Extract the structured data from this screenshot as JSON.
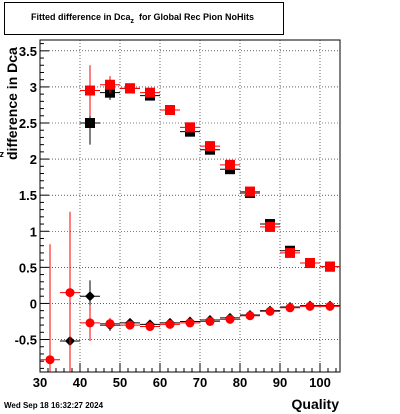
{
  "title": {
    "main": "Fitted difference in Dca",
    "sub": "z",
    "rest": "for Global Rec Pion NoHits"
  },
  "footer": "Wed Sep 18 16:32:27 2024",
  "chart_data": {
    "type": "scatter",
    "title": "Fitted difference in Dca z for Global Rec Pion NoHits",
    "xlabel": "Quality",
    "ylabel": "difference in Dca z",
    "xlim": [
      30,
      105
    ],
    "ylim": [
      -0.95,
      3.65
    ],
    "xticks": [
      30,
      40,
      50,
      60,
      70,
      80,
      90,
      100
    ],
    "yticks": [
      -0.5,
      0,
      0.5,
      1,
      1.5,
      2,
      2.5,
      3,
      3.5
    ],
    "grid": true,
    "series": [
      {
        "marker": "square",
        "color": "#000000",
        "points": [
          {
            "x": 42.5,
            "y": 2.5,
            "ey": 0.3
          },
          {
            "x": 47.5,
            "y": 2.92,
            "ey": 0.1
          },
          {
            "x": 52.5,
            "y": 2.98,
            "ey": 0.06
          },
          {
            "x": 57.5,
            "y": 2.88,
            "ey": 0.05
          },
          {
            "x": 62.5,
            "y": 2.68,
            "ey": 0.03
          },
          {
            "x": 67.5,
            "y": 2.38,
            "ey": 0.03
          },
          {
            "x": 72.5,
            "y": 2.13,
            "ey": 0.03
          },
          {
            "x": 77.5,
            "y": 1.86,
            "ey": 0.03
          },
          {
            "x": 82.5,
            "y": 1.53,
            "ey": 0.02
          },
          {
            "x": 87.5,
            "y": 1.1,
            "ey": 0.02
          },
          {
            "x": 92.5,
            "y": 0.73,
            "ey": 0.02
          },
          {
            "x": 97.5,
            "y": 0.56,
            "ey": 0.02
          },
          {
            "x": 102.5,
            "y": 0.51,
            "ey": 0.02
          }
        ]
      },
      {
        "marker": "square",
        "color": "#ff0000",
        "points": [
          {
            "x": 42.5,
            "y": 2.95,
            "ey": 0.35
          },
          {
            "x": 47.5,
            "y": 3.03,
            "ey": 0.12
          },
          {
            "x": 52.5,
            "y": 2.98,
            "ey": 0.06
          },
          {
            "x": 57.5,
            "y": 2.92,
            "ey": 0.05
          },
          {
            "x": 62.5,
            "y": 2.68,
            "ey": 0.03
          },
          {
            "x": 67.5,
            "y": 2.44,
            "ey": 0.03
          },
          {
            "x": 72.5,
            "y": 2.18,
            "ey": 0.03
          },
          {
            "x": 77.5,
            "y": 1.92,
            "ey": 0.03
          },
          {
            "x": 82.5,
            "y": 1.55,
            "ey": 0.02
          },
          {
            "x": 87.5,
            "y": 1.06,
            "ey": 0.02
          },
          {
            "x": 92.5,
            "y": 0.7,
            "ey": 0.02
          },
          {
            "x": 97.5,
            "y": 0.56,
            "ey": 0.02
          },
          {
            "x": 102.5,
            "y": 0.51,
            "ey": 0.02
          }
        ]
      },
      {
        "marker": "diamond",
        "color": "#000000",
        "points": [
          {
            "x": 37.5,
            "y": -0.52,
            "ey": 0.1
          },
          {
            "x": 42.5,
            "y": 0.1,
            "ey": 0.22
          },
          {
            "x": 47.5,
            "y": -0.3,
            "ey": 0.08
          },
          {
            "x": 52.5,
            "y": -0.27,
            "ey": 0.05
          },
          {
            "x": 57.5,
            "y": -0.29,
            "ey": 0.04
          },
          {
            "x": 62.5,
            "y": -0.27,
            "ey": 0.03
          },
          {
            "x": 67.5,
            "y": -0.25,
            "ey": 0.03
          },
          {
            "x": 72.5,
            "y": -0.23,
            "ey": 0.03
          },
          {
            "x": 77.5,
            "y": -0.2,
            "ey": 0.02
          },
          {
            "x": 82.5,
            "y": -0.16,
            "ey": 0.02
          },
          {
            "x": 87.5,
            "y": -0.1,
            "ey": 0.02
          },
          {
            "x": 92.5,
            "y": -0.05,
            "ey": 0.02
          },
          {
            "x": 97.5,
            "y": -0.03,
            "ey": 0.02
          },
          {
            "x": 102.5,
            "y": -0.03,
            "ey": 0.02
          }
        ]
      },
      {
        "marker": "circle",
        "color": "#ff0000",
        "points": [
          {
            "x": 32.5,
            "y": -0.78,
            "ey": 1.6
          },
          {
            "x": 37.5,
            "y": 0.15,
            "ey": 1.12
          },
          {
            "x": 42.5,
            "y": -0.27,
            "ey": 0.25
          },
          {
            "x": 47.5,
            "y": -0.28,
            "ey": 0.08
          },
          {
            "x": 52.5,
            "y": -0.3,
            "ey": 0.05
          },
          {
            "x": 57.5,
            "y": -0.32,
            "ey": 0.04
          },
          {
            "x": 62.5,
            "y": -0.29,
            "ey": 0.03
          },
          {
            "x": 67.5,
            "y": -0.27,
            "ey": 0.03
          },
          {
            "x": 72.5,
            "y": -0.25,
            "ey": 0.03
          },
          {
            "x": 77.5,
            "y": -0.22,
            "ey": 0.02
          },
          {
            "x": 82.5,
            "y": -0.17,
            "ey": 0.02
          },
          {
            "x": 87.5,
            "y": -0.11,
            "ey": 0.02
          },
          {
            "x": 92.5,
            "y": -0.06,
            "ey": 0.02
          },
          {
            "x": 97.5,
            "y": -0.04,
            "ey": 0.02
          },
          {
            "x": 102.5,
            "y": -0.04,
            "ey": 0.02
          }
        ]
      }
    ]
  }
}
